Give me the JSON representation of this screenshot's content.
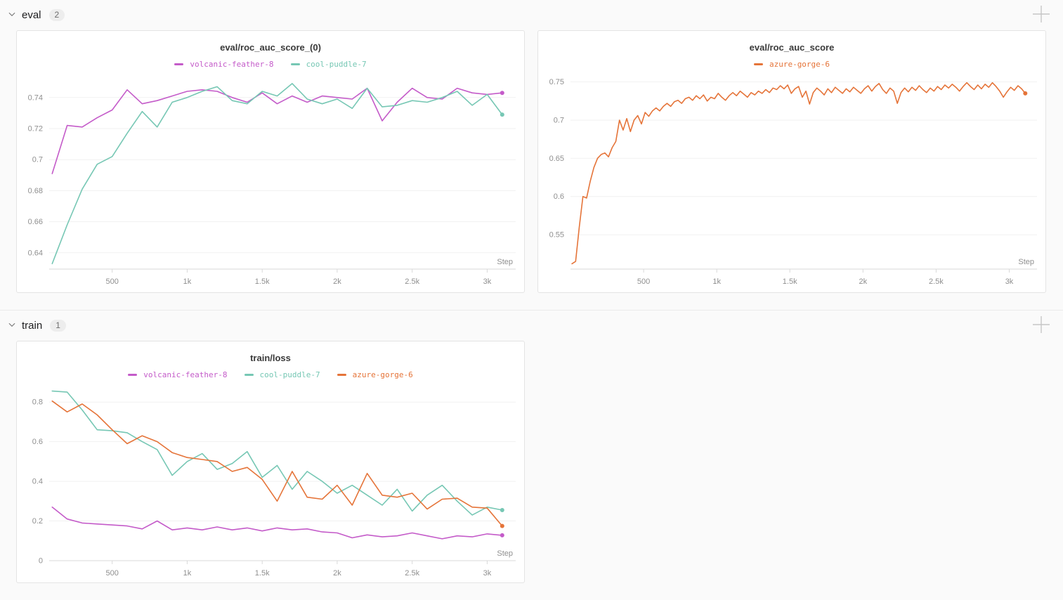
{
  "sections": [
    {
      "title": "eval",
      "badge": "2"
    },
    {
      "title": "train",
      "badge": "1"
    }
  ],
  "icons": {
    "chevron": "chevron-down-icon",
    "plus": "add-panel-icon"
  },
  "chart_data": [
    {
      "type": "line",
      "title": "eval/roc_auc_score_(0)",
      "xlabel": "Step",
      "legend_position": "top-center",
      "grid": true,
      "xlim": [
        80,
        3190
      ],
      "ylim": [
        0.6295,
        0.7535
      ],
      "x_start": 100,
      "x_interval": 100,
      "xticks": [
        {
          "v": 500,
          "label": "500"
        },
        {
          "v": 1000,
          "label": "1k"
        },
        {
          "v": 1500,
          "label": "1.5k"
        },
        {
          "v": 2000,
          "label": "2k"
        },
        {
          "v": 2500,
          "label": "2.5k"
        },
        {
          "v": 3000,
          "label": "3k"
        }
      ],
      "yticks": [
        {
          "v": 0.64,
          "label": "0.64"
        },
        {
          "v": 0.66,
          "label": "0.66"
        },
        {
          "v": 0.68,
          "label": "0.68"
        },
        {
          "v": 0.7,
          "label": "0.7"
        },
        {
          "v": 0.72,
          "label": "0.72"
        },
        {
          "v": 0.74,
          "label": "0.74"
        }
      ],
      "series": [
        {
          "name": "volcanic-feather-8",
          "color": "#C45BC9",
          "values": [
            0.691,
            0.722,
            0.721,
            0.727,
            0.732,
            0.745,
            0.736,
            0.738,
            0.741,
            0.744,
            0.745,
            0.744,
            0.74,
            0.737,
            0.743,
            0.736,
            0.741,
            0.737,
            0.741,
            0.74,
            0.739,
            0.746,
            0.725,
            0.737,
            0.746,
            0.74,
            0.739,
            0.746,
            0.743,
            0.742,
            0.743
          ]
        },
        {
          "name": "cool-puddle-7",
          "color": "#76C7B4",
          "values": [
            0.633,
            0.658,
            0.681,
            0.697,
            0.702,
            0.717,
            0.731,
            0.721,
            0.737,
            0.74,
            0.744,
            0.747,
            0.738,
            0.736,
            0.744,
            0.741,
            0.749,
            0.739,
            0.736,
            0.739,
            0.733,
            0.746,
            0.734,
            0.735,
            0.738,
            0.737,
            0.74,
            0.744,
            0.735,
            0.742,
            0.729
          ]
        }
      ]
    },
    {
      "type": "line",
      "title": "eval/roc_auc_score",
      "xlabel": "Step",
      "legend_position": "top-center",
      "grid": true,
      "xlim": [
        0,
        3190
      ],
      "ylim": [
        0.505,
        0.757
      ],
      "x_start": 10,
      "x_interval": 25,
      "xticks": [
        {
          "v": 500,
          "label": "500"
        },
        {
          "v": 1000,
          "label": "1k"
        },
        {
          "v": 1500,
          "label": "1.5k"
        },
        {
          "v": 2000,
          "label": "2k"
        },
        {
          "v": 2500,
          "label": "2.5k"
        },
        {
          "v": 3000,
          "label": "3k"
        }
      ],
      "yticks": [
        {
          "v": 0.55,
          "label": "0.55"
        },
        {
          "v": 0.6,
          "label": "0.6"
        },
        {
          "v": 0.65,
          "label": "0.65"
        },
        {
          "v": 0.7,
          "label": "0.7"
        },
        {
          "v": 0.75,
          "label": "0.75"
        }
      ],
      "series": [
        {
          "name": "azure-gorge-6",
          "color": "#E57439",
          "values": [
            0.512,
            0.515,
            0.56,
            0.6,
            0.598,
            0.62,
            0.638,
            0.65,
            0.655,
            0.657,
            0.652,
            0.664,
            0.672,
            0.7,
            0.687,
            0.702,
            0.685,
            0.7,
            0.706,
            0.695,
            0.71,
            0.705,
            0.712,
            0.716,
            0.712,
            0.718,
            0.722,
            0.718,
            0.724,
            0.726,
            0.722,
            0.728,
            0.73,
            0.726,
            0.732,
            0.728,
            0.733,
            0.725,
            0.73,
            0.728,
            0.735,
            0.73,
            0.726,
            0.732,
            0.736,
            0.732,
            0.738,
            0.734,
            0.73,
            0.736,
            0.733,
            0.738,
            0.735,
            0.74,
            0.736,
            0.742,
            0.74,
            0.745,
            0.741,
            0.746,
            0.735,
            0.741,
            0.744,
            0.73,
            0.738,
            0.721,
            0.736,
            0.742,
            0.738,
            0.733,
            0.741,
            0.736,
            0.743,
            0.739,
            0.735,
            0.741,
            0.737,
            0.743,
            0.739,
            0.735,
            0.741,
            0.745,
            0.738,
            0.744,
            0.748,
            0.74,
            0.735,
            0.742,
            0.738,
            0.722,
            0.736,
            0.742,
            0.737,
            0.743,
            0.739,
            0.745,
            0.74,
            0.736,
            0.742,
            0.738,
            0.744,
            0.74,
            0.746,
            0.742,
            0.747,
            0.743,
            0.738,
            0.744,
            0.749,
            0.744,
            0.74,
            0.746,
            0.741,
            0.747,
            0.743,
            0.749,
            0.744,
            0.738,
            0.73,
            0.737,
            0.743,
            0.739,
            0.745,
            0.741,
            0.735
          ]
        }
      ]
    },
    {
      "type": "line",
      "title": "train/loss",
      "xlabel": "Step",
      "legend_position": "top-center",
      "grid": true,
      "xlim": [
        80,
        3190
      ],
      "ylim": [
        0,
        0.875
      ],
      "x_start": 100,
      "x_interval": 100,
      "xticks": [
        {
          "v": 500,
          "label": "500"
        },
        {
          "v": 1000,
          "label": "1k"
        },
        {
          "v": 1500,
          "label": "1.5k"
        },
        {
          "v": 2000,
          "label": "2k"
        },
        {
          "v": 2500,
          "label": "2.5k"
        },
        {
          "v": 3000,
          "label": "3k"
        }
      ],
      "yticks": [
        {
          "v": 0,
          "label": "0"
        },
        {
          "v": 0.2,
          "label": "0.2"
        },
        {
          "v": 0.4,
          "label": "0.4"
        },
        {
          "v": 0.6,
          "label": "0.6"
        },
        {
          "v": 0.8,
          "label": "0.8"
        }
      ],
      "series": [
        {
          "name": "volcanic-feather-8",
          "color": "#C45BC9",
          "values": [
            0.27,
            0.21,
            0.19,
            0.185,
            0.18,
            0.175,
            0.16,
            0.2,
            0.155,
            0.165,
            0.155,
            0.17,
            0.155,
            0.165,
            0.15,
            0.165,
            0.155,
            0.16,
            0.145,
            0.14,
            0.115,
            0.13,
            0.12,
            0.125,
            0.14,
            0.125,
            0.11,
            0.125,
            0.12,
            0.135,
            0.128
          ]
        },
        {
          "name": "cool-puddle-7",
          "color": "#76C7B4",
          "values": [
            0.855,
            0.85,
            0.76,
            0.66,
            0.655,
            0.645,
            0.6,
            0.56,
            0.43,
            0.5,
            0.54,
            0.46,
            0.49,
            0.55,
            0.42,
            0.48,
            0.36,
            0.45,
            0.4,
            0.34,
            0.38,
            0.33,
            0.28,
            0.36,
            0.25,
            0.33,
            0.38,
            0.3,
            0.23,
            0.27,
            0.255
          ]
        },
        {
          "name": "azure-gorge-6",
          "color": "#E57439",
          "values": [
            0.805,
            0.75,
            0.79,
            0.735,
            0.66,
            0.59,
            0.63,
            0.6,
            0.545,
            0.52,
            0.51,
            0.5,
            0.45,
            0.47,
            0.41,
            0.3,
            0.45,
            0.32,
            0.31,
            0.38,
            0.28,
            0.44,
            0.33,
            0.32,
            0.34,
            0.26,
            0.31,
            0.315,
            0.27,
            0.265,
            0.175
          ]
        }
      ]
    }
  ]
}
